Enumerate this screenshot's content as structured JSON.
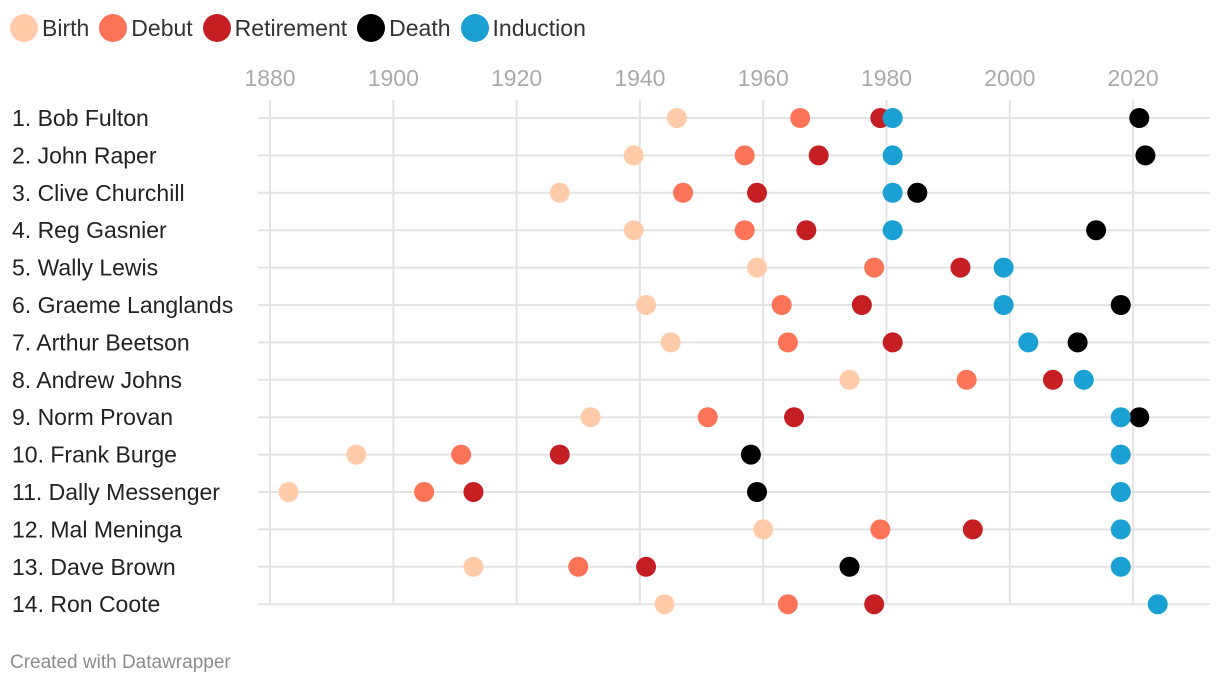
{
  "chart_data": {
    "type": "scatter",
    "title": "",
    "xlim": [
      1878,
      2032
    ],
    "x_ticks": [
      1880,
      1900,
      1920,
      1940,
      1960,
      1980,
      2000,
      2020
    ],
    "events": [
      {
        "key": "birth",
        "label": "Birth",
        "color": "#ffcba8"
      },
      {
        "key": "debut",
        "label": "Debut",
        "color": "#fb7458"
      },
      {
        "key": "retirement",
        "label": "Retirement",
        "color": "#c61f23"
      },
      {
        "key": "death",
        "label": "Death",
        "color": "#000000"
      },
      {
        "key": "induction",
        "label": "Induction",
        "color": "#1aa0d2"
      }
    ],
    "players": [
      {
        "label": "1. Bob Fulton",
        "birth": 1946,
        "debut": 1966,
        "retirement": 1979,
        "death": 2021,
        "induction": 1981
      },
      {
        "label": "2. John Raper",
        "birth": 1939,
        "debut": 1957,
        "retirement": 1969,
        "death": 2022,
        "induction": 1981
      },
      {
        "label": "3. Clive Churchill",
        "birth": 1927,
        "debut": 1947,
        "retirement": 1959,
        "death": 1985,
        "induction": 1981
      },
      {
        "label": "4. Reg Gasnier",
        "birth": 1939,
        "debut": 1957,
        "retirement": 1967,
        "death": 2014,
        "induction": 1981
      },
      {
        "label": "5. Wally Lewis",
        "birth": 1959,
        "debut": 1978,
        "retirement": 1992,
        "death": null,
        "induction": 1999
      },
      {
        "label": "6. Graeme Langlands",
        "birth": 1941,
        "debut": 1963,
        "retirement": 1976,
        "death": 2018,
        "induction": 1999
      },
      {
        "label": "7. Arthur Beetson",
        "birth": 1945,
        "debut": 1964,
        "retirement": 1981,
        "death": 2011,
        "induction": 2003
      },
      {
        "label": "8. Andrew Johns",
        "birth": 1974,
        "debut": 1993,
        "retirement": 2007,
        "death": null,
        "induction": 2012
      },
      {
        "label": "9. Norm Provan",
        "birth": 1932,
        "debut": 1951,
        "retirement": 1965,
        "death": 2021,
        "induction": 2018
      },
      {
        "label": "10. Frank Burge",
        "birth": 1894,
        "debut": 1911,
        "retirement": 1927,
        "death": 1958,
        "induction": 2018
      },
      {
        "label": "11. Dally Messenger",
        "birth": 1883,
        "debut": 1905,
        "retirement": 1913,
        "death": 1959,
        "induction": 2018
      },
      {
        "label": "12. Mal Meninga",
        "birth": 1960,
        "debut": 1979,
        "retirement": 1994,
        "death": null,
        "induction": 2018
      },
      {
        "label": "13. Dave Brown",
        "birth": 1913,
        "debut": 1930,
        "retirement": 1941,
        "death": 1974,
        "induction": 2018
      },
      {
        "label": "14. Ron Coote",
        "birth": 1944,
        "debut": 1964,
        "retirement": 1978,
        "death": null,
        "induction": 2024
      }
    ]
  },
  "footer": {
    "credit": "Created with Datawrapper"
  }
}
